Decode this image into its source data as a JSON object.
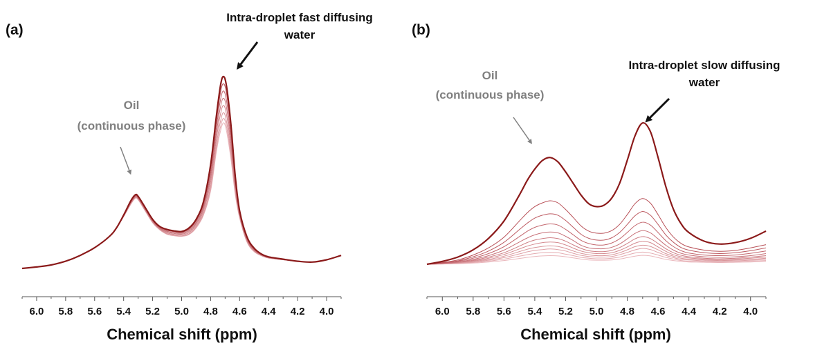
{
  "colors": {
    "spectrum": "#8b1a1a",
    "axis": "#555555",
    "oil_annotation": "#808080",
    "water_annotation": "#111111"
  },
  "chart_data": [
    {
      "type": "line",
      "panel_label": "(a)",
      "xlabel": "Chemical shift (ppm)",
      "ylabel": "",
      "x_reversed": true,
      "xlim": [
        6.1,
        3.9
      ],
      "ticks": [
        "6.0",
        "5.8",
        "5.6",
        "5.4",
        "5.2",
        "5.0",
        "4.8",
        "4.6",
        "4.4",
        "4.2",
        "4.0"
      ],
      "grid": false,
      "legend": "none",
      "annotations": [
        {
          "text_lines": [
            "Oil",
            "(continuous phase)"
          ],
          "target": {
            "x": 5.32,
            "y": 0.28
          },
          "color": "#808080"
        },
        {
          "text_lines": [
            "Intra-droplet fast diffusing",
            "water"
          ],
          "target": {
            "x": 4.71,
            "y": 0.67
          },
          "color": "#111111"
        }
      ],
      "x": [
        6.1,
        6.0,
        5.9,
        5.8,
        5.7,
        5.6,
        5.5,
        5.45,
        5.4,
        5.35,
        5.32,
        5.3,
        5.25,
        5.2,
        5.15,
        5.1,
        5.05,
        5.0,
        4.95,
        4.9,
        4.85,
        4.8,
        4.76,
        4.73,
        4.71,
        4.69,
        4.66,
        4.63,
        4.6,
        4.55,
        4.5,
        4.45,
        4.4,
        4.3,
        4.2,
        4.1,
        4.0,
        3.9
      ],
      "series": [
        {
          "values": [
            0.0,
            0.005,
            0.012,
            0.025,
            0.045,
            0.072,
            0.11,
            0.14,
            0.185,
            0.235,
            0.255,
            0.25,
            0.21,
            0.17,
            0.145,
            0.135,
            0.13,
            0.128,
            0.14,
            0.17,
            0.23,
            0.36,
            0.53,
            0.64,
            0.665,
            0.63,
            0.5,
            0.32,
            0.2,
            0.11,
            0.07,
            0.05,
            0.04,
            0.032,
            0.025,
            0.022,
            0.03,
            0.045
          ]
        },
        {
          "values": [
            0.0,
            0.005,
            0.012,
            0.025,
            0.045,
            0.072,
            0.11,
            0.14,
            0.184,
            0.233,
            0.253,
            0.248,
            0.208,
            0.168,
            0.143,
            0.132,
            0.127,
            0.125,
            0.136,
            0.165,
            0.222,
            0.345,
            0.51,
            0.615,
            0.64,
            0.605,
            0.48,
            0.31,
            0.196,
            0.107,
            0.068,
            0.049,
            0.04,
            0.032,
            0.025,
            0.022,
            0.03,
            0.045
          ]
        },
        {
          "values": [
            0.0,
            0.005,
            0.012,
            0.025,
            0.045,
            0.072,
            0.11,
            0.14,
            0.183,
            0.231,
            0.251,
            0.246,
            0.206,
            0.166,
            0.141,
            0.129,
            0.124,
            0.122,
            0.132,
            0.16,
            0.214,
            0.33,
            0.49,
            0.59,
            0.615,
            0.58,
            0.46,
            0.3,
            0.192,
            0.104,
            0.066,
            0.048,
            0.039,
            0.031,
            0.025,
            0.022,
            0.03,
            0.045
          ]
        },
        {
          "values": [
            0.0,
            0.005,
            0.012,
            0.025,
            0.045,
            0.072,
            0.11,
            0.14,
            0.182,
            0.229,
            0.249,
            0.244,
            0.204,
            0.164,
            0.139,
            0.126,
            0.121,
            0.119,
            0.128,
            0.155,
            0.206,
            0.315,
            0.47,
            0.565,
            0.59,
            0.556,
            0.442,
            0.29,
            0.188,
            0.101,
            0.064,
            0.047,
            0.038,
            0.031,
            0.025,
            0.022,
            0.03,
            0.045
          ]
        },
        {
          "values": [
            0.0,
            0.005,
            0.012,
            0.025,
            0.045,
            0.072,
            0.11,
            0.14,
            0.181,
            0.227,
            0.247,
            0.242,
            0.202,
            0.162,
            0.137,
            0.123,
            0.118,
            0.116,
            0.124,
            0.15,
            0.198,
            0.3,
            0.45,
            0.54,
            0.565,
            0.532,
            0.424,
            0.28,
            0.184,
            0.098,
            0.062,
            0.046,
            0.037,
            0.03,
            0.025,
            0.022,
            0.03,
            0.045
          ]
        },
        {
          "values": [
            0.0,
            0.005,
            0.012,
            0.025,
            0.045,
            0.072,
            0.11,
            0.14,
            0.18,
            0.225,
            0.245,
            0.24,
            0.2,
            0.16,
            0.135,
            0.12,
            0.115,
            0.113,
            0.12,
            0.145,
            0.19,
            0.285,
            0.43,
            0.515,
            0.54,
            0.508,
            0.406,
            0.27,
            0.18,
            0.095,
            0.06,
            0.045,
            0.036,
            0.03,
            0.025,
            0.022,
            0.03,
            0.045
          ]
        },
        {
          "values": [
            0.0,
            0.005,
            0.012,
            0.025,
            0.045,
            0.072,
            0.11,
            0.14,
            0.18,
            0.224,
            0.244,
            0.239,
            0.199,
            0.159,
            0.134,
            0.119,
            0.114,
            0.112,
            0.118,
            0.142,
            0.186,
            0.275,
            0.415,
            0.495,
            0.52,
            0.49,
            0.392,
            0.262,
            0.177,
            0.093,
            0.059,
            0.044,
            0.036,
            0.03,
            0.025,
            0.022,
            0.03,
            0.045
          ]
        },
        {
          "values": [
            0.0,
            0.005,
            0.012,
            0.025,
            0.045,
            0.072,
            0.11,
            0.14,
            0.18,
            0.223,
            0.243,
            0.238,
            0.198,
            0.158,
            0.133,
            0.118,
            0.113,
            0.111,
            0.117,
            0.14,
            0.183,
            0.268,
            0.405,
            0.48,
            0.505,
            0.475,
            0.38,
            0.256,
            0.175,
            0.092,
            0.058,
            0.044,
            0.036,
            0.03,
            0.025,
            0.022,
            0.03,
            0.045
          ]
        }
      ]
    },
    {
      "type": "line",
      "panel_label": "(b)",
      "xlabel": "Chemical shift (ppm)",
      "ylabel": "",
      "x_reversed": true,
      "xlim": [
        6.1,
        3.9
      ],
      "ticks": [
        "6.0",
        "5.8",
        "5.6",
        "5.4",
        "5.2",
        "5.0",
        "4.8",
        "4.6",
        "4.4",
        "4.2",
        "4.0"
      ],
      "grid": false,
      "legend": "none",
      "annotations": [
        {
          "text_lines": [
            "Oil",
            "(continuous phase)"
          ],
          "target": {
            "x": 5.4,
            "y": 0.4
          },
          "color": "#808080"
        },
        {
          "text_lines": [
            "Intra-droplet slow diffusing",
            "water"
          ],
          "target": {
            "x": 4.7,
            "y": 0.5
          },
          "color": "#111111"
        }
      ],
      "x": [
        6.1,
        6.0,
        5.9,
        5.8,
        5.7,
        5.6,
        5.5,
        5.45,
        5.4,
        5.35,
        5.3,
        5.25,
        5.2,
        5.15,
        5.1,
        5.05,
        5.0,
        4.95,
        4.9,
        4.85,
        4.8,
        4.75,
        4.7,
        4.65,
        4.6,
        4.55,
        4.5,
        4.45,
        4.4,
        4.3,
        4.2,
        4.1,
        4.0,
        3.9
      ],
      "series": [
        {
          "values": [
            0.0,
            0.01,
            0.025,
            0.05,
            0.09,
            0.15,
            0.24,
            0.29,
            0.33,
            0.36,
            0.37,
            0.355,
            0.32,
            0.28,
            0.24,
            0.21,
            0.2,
            0.205,
            0.23,
            0.28,
            0.36,
            0.445,
            0.49,
            0.46,
            0.37,
            0.27,
            0.19,
            0.14,
            0.11,
            0.08,
            0.07,
            0.075,
            0.09,
            0.115
          ]
        },
        {
          "values": [
            0.0,
            0.006,
            0.015,
            0.032,
            0.057,
            0.094,
            0.15,
            0.178,
            0.2,
            0.213,
            0.22,
            0.213,
            0.19,
            0.162,
            0.133,
            0.115,
            0.108,
            0.108,
            0.117,
            0.138,
            0.172,
            0.21,
            0.228,
            0.212,
            0.172,
            0.128,
            0.094,
            0.072,
            0.06,
            0.049,
            0.045,
            0.048,
            0.057,
            0.068
          ]
        },
        {
          "values": [
            0.0,
            0.005,
            0.012,
            0.026,
            0.046,
            0.076,
            0.12,
            0.142,
            0.16,
            0.17,
            0.175,
            0.17,
            0.152,
            0.128,
            0.104,
            0.09,
            0.084,
            0.084,
            0.092,
            0.11,
            0.138,
            0.168,
            0.183,
            0.17,
            0.138,
            0.102,
            0.076,
            0.058,
            0.049,
            0.04,
            0.037,
            0.04,
            0.047,
            0.057
          ]
        },
        {
          "values": [
            0.0,
            0.004,
            0.01,
            0.021,
            0.037,
            0.061,
            0.096,
            0.114,
            0.128,
            0.136,
            0.14,
            0.136,
            0.121,
            0.102,
            0.083,
            0.072,
            0.067,
            0.067,
            0.074,
            0.088,
            0.11,
            0.134,
            0.146,
            0.136,
            0.11,
            0.082,
            0.061,
            0.047,
            0.039,
            0.032,
            0.03,
            0.032,
            0.038,
            0.046
          ]
        },
        {
          "values": [
            0.0,
            0.003,
            0.008,
            0.017,
            0.03,
            0.049,
            0.077,
            0.091,
            0.102,
            0.109,
            0.112,
            0.109,
            0.097,
            0.082,
            0.066,
            0.057,
            0.054,
            0.054,
            0.059,
            0.07,
            0.088,
            0.107,
            0.117,
            0.109,
            0.088,
            0.066,
            0.049,
            0.038,
            0.032,
            0.026,
            0.024,
            0.026,
            0.03,
            0.037
          ]
        },
        {
          "values": [
            0.0,
            0.003,
            0.007,
            0.014,
            0.025,
            0.04,
            0.063,
            0.075,
            0.084,
            0.089,
            0.092,
            0.089,
            0.08,
            0.067,
            0.055,
            0.047,
            0.044,
            0.044,
            0.048,
            0.058,
            0.072,
            0.088,
            0.096,
            0.089,
            0.072,
            0.054,
            0.04,
            0.031,
            0.026,
            0.021,
            0.019,
            0.021,
            0.025,
            0.03
          ]
        },
        {
          "values": [
            0.0,
            0.002,
            0.006,
            0.012,
            0.021,
            0.034,
            0.053,
            0.063,
            0.07,
            0.075,
            0.077,
            0.075,
            0.067,
            0.056,
            0.046,
            0.04,
            0.037,
            0.037,
            0.04,
            0.048,
            0.06,
            0.073,
            0.08,
            0.075,
            0.06,
            0.045,
            0.033,
            0.026,
            0.022,
            0.018,
            0.016,
            0.018,
            0.021,
            0.025
          ]
        },
        {
          "values": [
            0.0,
            0.002,
            0.005,
            0.01,
            0.017,
            0.028,
            0.044,
            0.052,
            0.058,
            0.062,
            0.064,
            0.062,
            0.055,
            0.046,
            0.038,
            0.033,
            0.03,
            0.03,
            0.033,
            0.04,
            0.05,
            0.061,
            0.066,
            0.062,
            0.05,
            0.037,
            0.028,
            0.021,
            0.018,
            0.015,
            0.013,
            0.015,
            0.017,
            0.021
          ]
        },
        {
          "values": [
            0.0,
            0.002,
            0.004,
            0.008,
            0.014,
            0.023,
            0.036,
            0.043,
            0.048,
            0.051,
            0.053,
            0.051,
            0.046,
            0.038,
            0.031,
            0.027,
            0.025,
            0.025,
            0.027,
            0.033,
            0.041,
            0.05,
            0.055,
            0.051,
            0.041,
            0.031,
            0.023,
            0.017,
            0.015,
            0.012,
            0.011,
            0.012,
            0.014,
            0.017
          ]
        },
        {
          "values": [
            0.0,
            0.001,
            0.003,
            0.006,
            0.011,
            0.018,
            0.028,
            0.033,
            0.037,
            0.04,
            0.041,
            0.04,
            0.035,
            0.03,
            0.024,
            0.021,
            0.019,
            0.019,
            0.021,
            0.025,
            0.032,
            0.039,
            0.042,
            0.039,
            0.032,
            0.024,
            0.018,
            0.013,
            0.011,
            0.009,
            0.008,
            0.009,
            0.011,
            0.013
          ]
        },
        {
          "values": [
            0.0,
            0.001,
            0.002,
            0.004,
            0.008,
            0.013,
            0.02,
            0.024,
            0.027,
            0.029,
            0.03,
            0.029,
            0.026,
            0.022,
            0.018,
            0.015,
            0.014,
            0.014,
            0.015,
            0.018,
            0.023,
            0.028,
            0.031,
            0.029,
            0.023,
            0.017,
            0.013,
            0.01,
            0.008,
            0.007,
            0.006,
            0.007,
            0.008,
            0.01
          ]
        }
      ]
    }
  ]
}
